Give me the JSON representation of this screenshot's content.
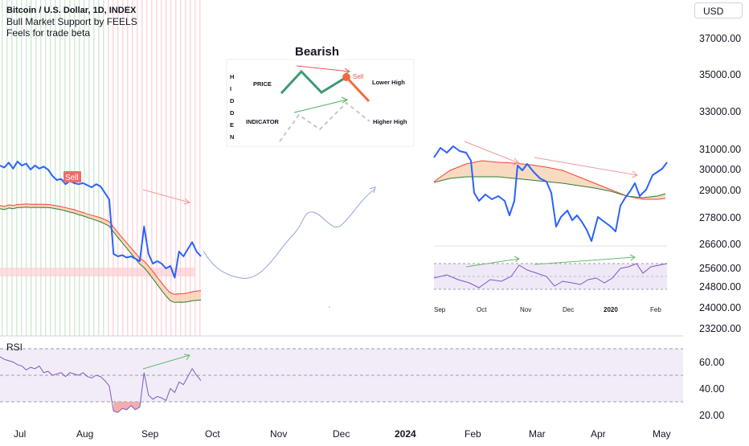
{
  "header": {
    "symbol_line": "Bitcoin / U.S. Dollar, 1D, INDEX",
    "indicator_line": "Bull Market Support by FEELS",
    "note_line": "Feels for trade beta"
  },
  "currency_button": "USD",
  "colors": {
    "price": "#2962ff",
    "band_fill": "#f5cba7",
    "upper_band": "#f44336",
    "lower_band": "#2e7d32",
    "rsi_line": "#7e57c2",
    "rsi_fill": "#ede7f6",
    "bearish_arrow": "#ef5350",
    "bullish_arrow": "#4caf50",
    "projection": "#90a4d4"
  },
  "chart_data": [
    {
      "type": "line",
      "name": "main-price",
      "y_axis_ticks": [
        "37000.00",
        "35000.00",
        "33000.00",
        "31000.00",
        "30000.00",
        "29000.00",
        "27800.00",
        "26600.00",
        "25600.00",
        "24800.00",
        "24000.00",
        "23200.00"
      ],
      "x_axis_ticks": [
        {
          "label": "Jul",
          "bold": false
        },
        {
          "label": "Aug",
          "bold": false
        },
        {
          "label": "Sep",
          "bold": false
        },
        {
          "label": "Oct",
          "bold": false
        },
        {
          "label": "Nov",
          "bold": false
        },
        {
          "label": "Dec",
          "bold": false
        },
        {
          "label": "2024",
          "bold": true
        },
        {
          "label": "Feb",
          "bold": false
        },
        {
          "label": "Mar",
          "bold": false
        },
        {
          "label": "Apr",
          "bold": false
        },
        {
          "label": "May",
          "bold": false
        }
      ],
      "series": [
        {
          "values": [
            30200,
            30100,
            30350,
            30050,
            30400,
            30200,
            30300,
            30000,
            30200,
            30050,
            30150,
            30000,
            29700,
            29500,
            29550,
            29300,
            29450,
            29350,
            29300,
            29350,
            29250,
            29150,
            29300,
            29200,
            28900,
            28600,
            26200,
            26100,
            26150,
            26050,
            26100,
            26000,
            25900,
            27400,
            26200,
            25800,
            25900,
            25800,
            25600,
            25700,
            25200,
            26300,
            26100,
            26400,
            26700,
            26300,
            26100
          ]
        }
      ],
      "sell_marker": "Sell",
      "band_note": "orange fill between red and green moving averages"
    },
    {
      "type": "line",
      "name": "rsi",
      "title": "RSI",
      "y_ticks": [
        "60.00",
        "40.00",
        "20.00"
      ],
      "ylim": [
        20,
        70
      ],
      "levels": [
        70,
        50,
        30
      ],
      "values": [
        64,
        62,
        61,
        60,
        58,
        57,
        54,
        56,
        55,
        57,
        52,
        53,
        50,
        51,
        52,
        49,
        52,
        51,
        50,
        52,
        49,
        48,
        50,
        49,
        46,
        42,
        23,
        22,
        25,
        24,
        27,
        24,
        26,
        52,
        35,
        32,
        34,
        33,
        31,
        40,
        37,
        45,
        43,
        49,
        55,
        50,
        46
      ]
    },
    {
      "type": "line",
      "name": "reference-inset-price",
      "x_ticks": [
        {
          "label": "Sep",
          "bold": false
        },
        {
          "label": "Oct",
          "bold": false
        },
        {
          "label": "Nov",
          "bold": false
        },
        {
          "label": "Dec",
          "bold": false
        },
        {
          "label": "2020",
          "bold": true
        },
        {
          "label": "Feb",
          "bold": false
        }
      ]
    }
  ],
  "inset": {
    "title": "Bearish",
    "side_letters": [
      "H",
      "I",
      "D",
      "D",
      "E",
      "N"
    ],
    "price_label": "PRICE",
    "indicator_label": "INDICATOR",
    "sell_label": "Sell",
    "lower_high_label": "Lower High",
    "higher_high_label": "Higher High"
  }
}
